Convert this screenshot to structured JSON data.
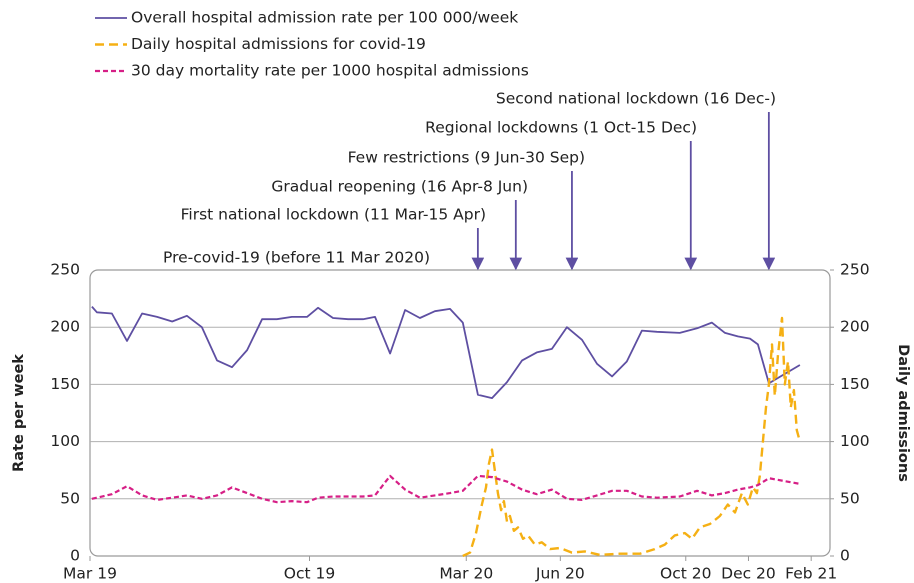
{
  "chart_data": {
    "type": "line",
    "x": [
      0.06,
      0.22,
      0.7,
      1.18,
      1.66,
      2.14,
      2.62,
      3.09,
      3.57,
      4.05,
      4.53,
      5.01,
      5.49,
      5.96,
      6.44,
      6.92,
      7.27,
      7.75,
      8.23,
      8.71,
      9.09,
      9.57,
      10.05,
      10.52,
      11.0,
      11.48,
      11.89,
      12.37,
      12.82,
      13.3,
      13.78,
      14.25,
      14.73,
      15.21,
      15.69,
      16.17,
      16.65,
      17.12,
      17.6,
      18.08,
      18.81,
      19.36,
      19.83,
      20.25,
      20.66,
      21.05,
      21.3,
      21.65,
      22.64
    ],
    "series": [
      {
        "name": "Overall hospital admission rate per 100 000/week",
        "color": "#5e4fa2",
        "style": "solid",
        "values": [
          218,
          213,
          212,
          188,
          212,
          209,
          205,
          210,
          200,
          171,
          165,
          180,
          207,
          207,
          209,
          209,
          217,
          208,
          207,
          207,
          209,
          177,
          215,
          208,
          214,
          216,
          204,
          141,
          138,
          152,
          171,
          178,
          181,
          200,
          189,
          168,
          157,
          170,
          197,
          196,
          195,
          199,
          204,
          195,
          192,
          190,
          185,
          151,
          167
        ]
      },
      {
        "name": "Daily hospital admissions for covid-19",
        "color": "#f5b014",
        "style": "dashed",
        "axis": "y2",
        "x": [
          11.89,
          12.12,
          12.31,
          12.5,
          12.63,
          12.72,
          12.82,
          12.91,
          13.01,
          13.11,
          13.2,
          13.3,
          13.39,
          13.52,
          13.65,
          13.81,
          13.97,
          14.19,
          14.41,
          14.67,
          14.99,
          15.37,
          15.78,
          16.26,
          16.9,
          17.54,
          18.01,
          18.33,
          18.65,
          18.97,
          19.2,
          19.45,
          19.77,
          20.09,
          20.34,
          20.57,
          20.79,
          20.98,
          21.14,
          21.27,
          21.36,
          21.46,
          21.56,
          21.65,
          21.75,
          21.84,
          21.94,
          22.07,
          22.16,
          22.26,
          22.35,
          22.45,
          22.54,
          22.64
        ],
        "values": [
          0,
          3,
          20,
          45,
          60,
          80,
          93,
          75,
          55,
          40,
          48,
          30,
          35,
          22,
          25,
          15,
          18,
          10,
          12,
          6,
          7,
          3,
          4,
          1,
          2,
          2,
          6,
          10,
          18,
          20,
          15,
          25,
          28,
          35,
          45,
          38,
          55,
          45,
          60,
          55,
          70,
          100,
          130,
          150,
          185,
          140,
          175,
          208,
          150,
          170,
          130,
          145,
          110,
          100
        ]
      },
      {
        "name": "30 day mortality rate per 1000 hospital admissions",
        "color": "#d61f86",
        "style": "dotted",
        "values": [
          50,
          51,
          54,
          61,
          53,
          49,
          51,
          53,
          50,
          53,
          60,
          55,
          50,
          47,
          48,
          47,
          51,
          52,
          52,
          52,
          53,
          70,
          58,
          51,
          53,
          55,
          57,
          70,
          69,
          65,
          58,
          54,
          58,
          50,
          49,
          53,
          57,
          57,
          52,
          51,
          52,
          57,
          53,
          55,
          58,
          60,
          62,
          68,
          63
        ]
      }
    ],
    "xlim": [
      0,
      23.6
    ],
    "xticks": [
      {
        "value": 0,
        "label": "Mar 19"
      },
      {
        "value": 7,
        "label": "Oct 19"
      },
      {
        "value": 12,
        "label": "Mar 20"
      },
      {
        "value": 15,
        "label": "Jun 20"
      },
      {
        "value": 19,
        "label": "Oct 20"
      },
      {
        "value": 21,
        "label": "Dec 20"
      },
      {
        "value": 23,
        "label": "Feb 21"
      }
    ],
    "ylim": [
      0,
      250
    ],
    "yticks": [
      0,
      50,
      100,
      150,
      200,
      250
    ],
    "y2lim": [
      0,
      250
    ],
    "y2ticks": [
      0,
      50,
      100,
      150,
      200,
      250
    ],
    "ylabel": "Rate per week",
    "y2label": "Daily admissions",
    "grid": true,
    "legend": "top-left",
    "phases": [
      {
        "label": "Pre-covid-19 (before 11 Mar 2020)"
      },
      {
        "label": "First national lockdown (11 Mar-15 Apr)",
        "x": 12.37
      },
      {
        "label": "Gradual reopening (16 Apr-8 Jun)",
        "x": 13.58
      },
      {
        "label": "Few restrictions (9 Jun-30 Sep)",
        "x": 15.37
      },
      {
        "label": "Regional lockdowns (1 Oct-15 Dec)",
        "x": 19.16
      },
      {
        "label": "Second national lockdown (16 Dec-)",
        "x": 21.65
      }
    ]
  }
}
